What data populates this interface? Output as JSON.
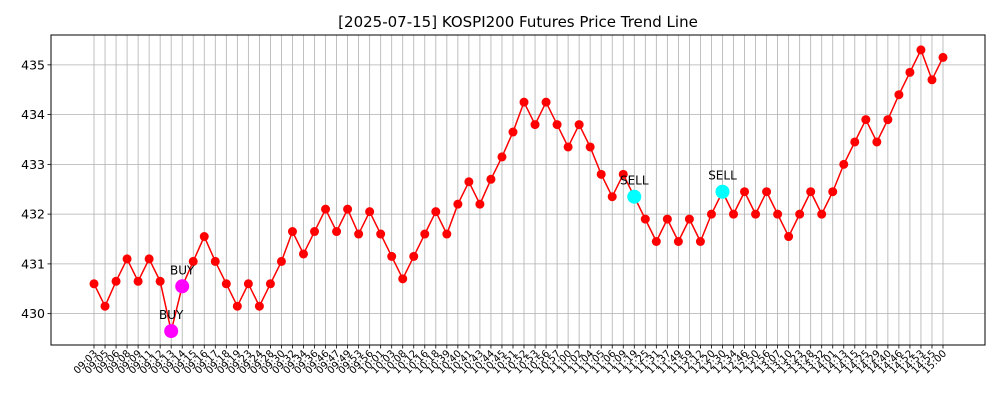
{
  "chart_data": {
    "type": "line",
    "title": "[2025-07-15] KOSPI200 Futures Price Trend Line",
    "xlabel": "",
    "ylabel": "",
    "ylim": [
      429.37,
      435.6
    ],
    "yticks": [
      430,
      431,
      432,
      433,
      434,
      435
    ],
    "grid": true,
    "x": [
      "09:03",
      "09:05",
      "09:06",
      "09:08",
      "09:09",
      "09:11",
      "09:12",
      "09:13",
      "09:14",
      "09:15",
      "09:16",
      "09:17",
      "09:18",
      "09:19",
      "09:23",
      "09:24",
      "09:28",
      "09:30",
      "09:32",
      "09:34",
      "09:36",
      "09:46",
      "09:47",
      "09:49",
      "09:53",
      "09:56",
      "10:01",
      "10:03",
      "10:08",
      "10:12",
      "10:16",
      "10:18",
      "10:39",
      "10:40",
      "10:41",
      "10:43",
      "10:44",
      "10:45",
      "10:51",
      "10:52",
      "10:53",
      "10:56",
      "10:57",
      "11:00",
      "11:02",
      "11:04",
      "11:05",
      "11:06",
      "11:09",
      "11:19",
      "11:25",
      "11:31",
      "11:37",
      "11:49",
      "11:59",
      "12:12",
      "12:20",
      "12:30",
      "12:34",
      "12:46",
      "12:50",
      "12:56",
      "13:07",
      "13:10",
      "13:23",
      "13:28",
      "13:32",
      "14:01",
      "14:13",
      "14:15",
      "14:25",
      "14:29",
      "14:40",
      "14:46",
      "14:52",
      "14:53",
      "14:55",
      "15:00"
    ],
    "series": [
      {
        "color": "#ff0000",
        "values": [
          430.6,
          430.15,
          430.65,
          431.1,
          430.65,
          431.1,
          430.65,
          429.65,
          430.55,
          431.05,
          431.55,
          431.05,
          430.6,
          430.15,
          430.6,
          430.15,
          430.6,
          431.05,
          431.65,
          431.2,
          431.65,
          432.1,
          431.65,
          432.1,
          431.6,
          432.05,
          431.6,
          431.15,
          430.7,
          431.15,
          431.6,
          432.05,
          431.6,
          432.2,
          432.65,
          432.2,
          432.7,
          433.15,
          433.65,
          434.25,
          433.8,
          434.25,
          433.8,
          433.35,
          433.8,
          433.35,
          432.8,
          432.35,
          432.8,
          432.35,
          431.9,
          431.45,
          431.9,
          431.45,
          431.9,
          431.45,
          432.0,
          432.45,
          432.0,
          432.45,
          432.0,
          432.45,
          432.0,
          431.55,
          432.0,
          432.45,
          432.0,
          432.45,
          433.0,
          433.45,
          433.9,
          433.45,
          433.9,
          434.4,
          434.85,
          435.3,
          434.7,
          435.15
        ]
      }
    ],
    "signals": [
      {
        "label": "BUY",
        "index": 7,
        "value": 429.65,
        "color": "#ff00ff"
      },
      {
        "label": "BUY",
        "index": 8,
        "value": 430.55,
        "color": "#ff00ff"
      },
      {
        "label": "SELL",
        "index": 49,
        "value": 432.35,
        "color": "#00ffff"
      },
      {
        "label": "SELL",
        "index": 57,
        "value": 432.45,
        "color": "#00ffff"
      }
    ]
  }
}
